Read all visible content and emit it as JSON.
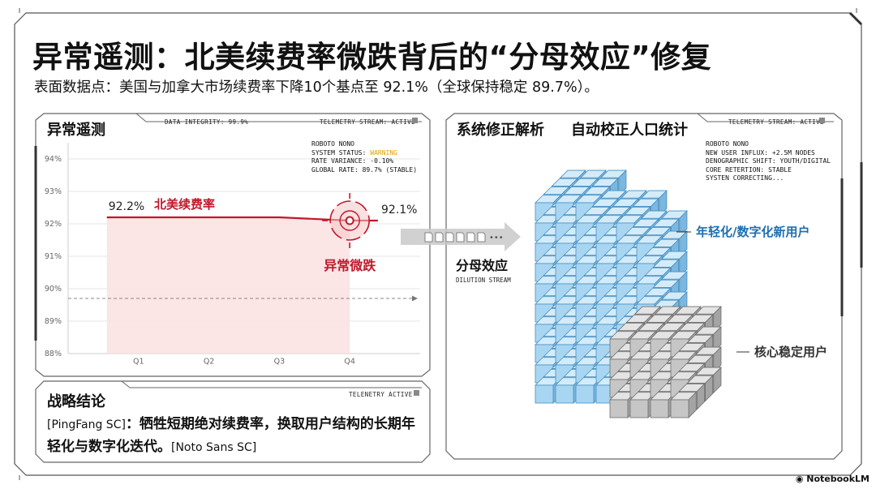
{
  "header": {
    "title": "异常遥测：北美续费率微跌背后的“分母效应”修复",
    "subtitle": "表面数据点：美国与加拿大市场续费率下降10个基点至 92.1%（全球保持稳定 89.7%）。"
  },
  "left_panel": {
    "title": "异常遥测",
    "integrity_tag": "DATA INTEGRITY: 99.9%",
    "stream_tag": "TELEMETRY STREAM: ACTIVE",
    "readout": {
      "font": "ROBOTO NONO",
      "status_label": "SYSTEM STATUS: ",
      "status_value": "WARNING",
      "variance": "RATE VARIANCE: -0.10%",
      "global": "GLOBAL RATE: 89.7% (STABLE)"
    },
    "series_label": "北美续费率",
    "anomaly_label": "异常微跌"
  },
  "chart_data": {
    "type": "line",
    "categories": [
      "Q1",
      "Q2",
      "Q3",
      "Q4"
    ],
    "y_tick_labels": [
      "94%",
      "93%",
      "92%",
      "91%",
      "90%",
      "89%",
      "88%"
    ],
    "ylim": [
      88,
      94.5
    ],
    "series": [
      {
        "name": "北美续费率",
        "points": [
          [
            0.55,
            92.2
          ],
          [
            3.0,
            92.2
          ],
          [
            4.0,
            92.1
          ],
          [
            4.4,
            92.1
          ]
        ]
      }
    ],
    "global_reference": 89.7,
    "start_value_label": "92.2%",
    "end_value_label": "92.1%",
    "grid": true,
    "colors": {
      "series": "#c0182a",
      "fill": "#fbe2e2"
    }
  },
  "conclusion_panel": {
    "title": "战略结论",
    "tag": "TELENETRY ACTIVE",
    "font_note_1": "[PingFang SC]",
    "text": "：牺牲短期绝对续费率，换取用户结构的长期年轻化与数字化迭代。",
    "font_note_2": "[Noto Sans SC]"
  },
  "right_panel": {
    "title": "系统修正解析",
    "subtitle": "自动校正人口统计",
    "stream_tag": "TELEMETRY STREAM: ACTIVE",
    "readout": [
      "ROBOTO NONO",
      "NEW USER INFLUX: +2.5M NODES",
      "DENOGRAPHIC SHIFT: YOUTH/DIGITAL",
      "CORE RETERTION: STABLE",
      "SYSTEN CORRECTING..."
    ],
    "dilution_label": "分母效应",
    "dilution_sub": "DILUTION STREAM",
    "new_users_label": "年轻化/数字化新用户",
    "core_users_label": "核心稳定用户",
    "colors": {
      "blue": "#8ec8ea",
      "gray": "#c4c4c4",
      "label_blue": "#1e6fb0"
    }
  },
  "footer": {
    "brand": "NotebookLM"
  }
}
